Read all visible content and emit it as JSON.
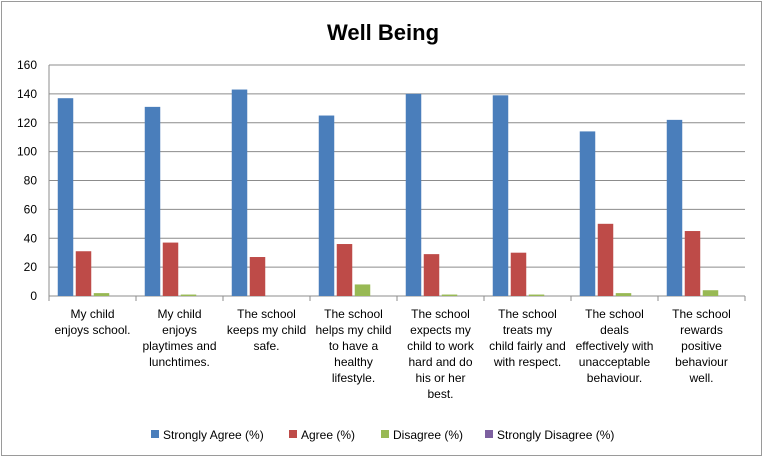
{
  "chart_data": {
    "type": "bar",
    "title": "Well Being",
    "xlabel": "",
    "ylabel": "",
    "ylim": [
      0,
      160
    ],
    "yticks": [
      0,
      20,
      40,
      60,
      80,
      100,
      120,
      140,
      160
    ],
    "grid": true,
    "legend_position": "bottom",
    "categories": [
      [
        "My child",
        "enjoys school."
      ],
      [
        "My child",
        "enjoys",
        "playtimes and",
        "lunchtimes."
      ],
      [
        "The school",
        "keeps my child",
        "safe."
      ],
      [
        "The school",
        "helps my child",
        "to have a",
        "healthy",
        "lifestyle."
      ],
      [
        "The school",
        "expects my",
        "child to work",
        "hard and do",
        "his or her",
        "best."
      ],
      [
        "The school",
        "treats my",
        "child fairly and",
        "with respect."
      ],
      [
        "The school",
        "deals",
        "effectively with",
        "unacceptable",
        "behaviour."
      ],
      [
        "The school",
        "rewards",
        "positive",
        "behaviour",
        "well."
      ]
    ],
    "series": [
      {
        "name": "Strongly Agree (%)",
        "color": "#4a7ebb",
        "values": [
          137,
          131,
          143,
          125,
          140,
          139,
          114,
          122
        ]
      },
      {
        "name": "Agree (%)",
        "color": "#be4b48",
        "values": [
          31,
          37,
          27,
          36,
          29,
          30,
          50,
          45
        ]
      },
      {
        "name": "Disagree (%)",
        "color": "#98b954",
        "values": [
          2,
          1,
          0,
          8,
          1,
          1,
          2,
          4
        ]
      },
      {
        "name": "Strongly Disagree (%)",
        "color": "#7d60a0",
        "values": [
          0,
          0,
          0,
          0,
          0,
          0,
          0,
          0
        ]
      }
    ]
  }
}
